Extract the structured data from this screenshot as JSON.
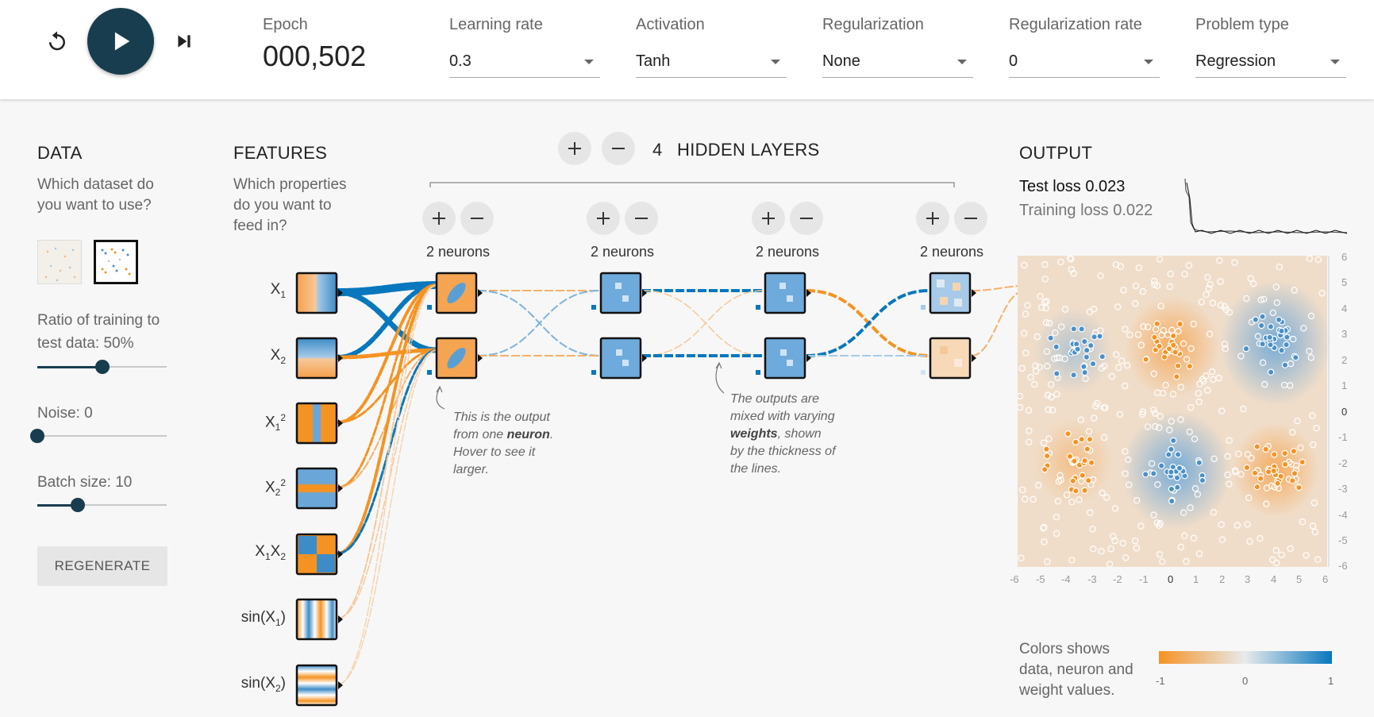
{
  "controls": {
    "reset_icon": "reset-icon",
    "play_icon": "play-icon",
    "step_icon": "step-forward-icon",
    "epoch_label": "Epoch",
    "epoch_value": "000,502",
    "learning_rate": {
      "label": "Learning rate",
      "value": "0.3"
    },
    "activation": {
      "label": "Activation",
      "value": "Tanh"
    },
    "regularization": {
      "label": "Regularization",
      "value": "None"
    },
    "regularization_rate": {
      "label": "Regularization rate",
      "value": "0"
    },
    "problem_type": {
      "label": "Problem type",
      "value": "Regression"
    }
  },
  "data_panel": {
    "title": "DATA",
    "question_line1": "Which dataset do",
    "question_line2": "you want to use?",
    "ratio_label_line1": "Ratio of training to",
    "ratio_label_line2": "test data:  50%",
    "ratio_value": 0.5,
    "noise_label": "Noise:  0",
    "noise_value": 0,
    "batch_label": "Batch size:  10",
    "batch_value": 0.31,
    "regenerate_label": "REGENERATE"
  },
  "features_panel": {
    "title": "FEATURES",
    "q1": "Which properties",
    "q2": "do you want to",
    "q3": "feed in?",
    "features": [
      {
        "base": "X",
        "sub": "1",
        "sup": "",
        "suffix": ""
      },
      {
        "base": "X",
        "sub": "2",
        "sup": "",
        "suffix": ""
      },
      {
        "base": "X",
        "sub": "1",
        "sup": "2",
        "suffix": ""
      },
      {
        "base": "X",
        "sub": "2",
        "sup": "2",
        "suffix": ""
      },
      {
        "base": "X",
        "sub": "1",
        "sup": "",
        "suffix": "X",
        "sub2": "2"
      },
      {
        "base": "sin(X",
        "sub": "1",
        "sup": "",
        "suffix": ")"
      },
      {
        "base": "sin(X",
        "sub": "2",
        "sup": "",
        "suffix": ")"
      }
    ]
  },
  "hidden": {
    "count": "4",
    "title": "HIDDEN LAYERS",
    "layers": [
      {
        "neurons_label": "2 neurons"
      },
      {
        "neurons_label": "2 neurons"
      },
      {
        "neurons_label": "2 neurons"
      },
      {
        "neurons_label": "2 neurons"
      }
    ],
    "annotation1": [
      "This is the output",
      "from one ",
      "neuron",
      ".",
      "Hover to see it",
      "larger."
    ],
    "annotation2": [
      "The outputs are",
      "mixed with varying",
      "weights",
      ", shown",
      "by the thickness of",
      "the lines."
    ]
  },
  "output": {
    "title": "OUTPUT",
    "test_loss": "Test loss 0.023",
    "training_loss": "Training loss 0.022",
    "x_ticks": [
      "-6",
      "-5",
      "-4",
      "-3",
      "-2",
      "-1",
      "0",
      "1",
      "2",
      "3",
      "4",
      "5",
      "6"
    ],
    "y_ticks": [
      "6",
      "5",
      "4",
      "3",
      "2",
      "1",
      "0",
      "-1",
      "-2",
      "-3",
      "-4",
      "-5",
      "-6"
    ],
    "legend_line1": "Colors shows",
    "legend_line2": "data, neuron and",
    "legend_line3": "weight values.",
    "legend_ticks": [
      "-1",
      "0",
      "1"
    ]
  },
  "colors": {
    "orange": "#f59322",
    "blue": "#0877bd",
    "dark": "#183d4e"
  }
}
